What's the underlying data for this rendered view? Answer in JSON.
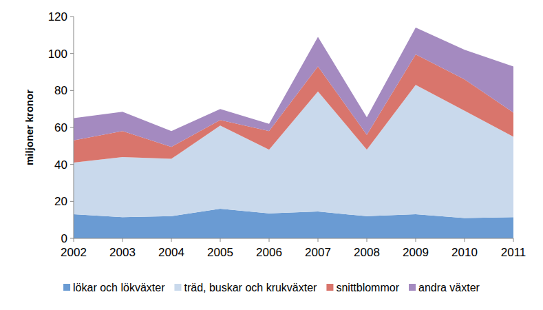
{
  "chart_data": {
    "type": "area",
    "stacked": true,
    "y_label": "miljoner kronor",
    "categories": [
      "2002",
      "2003",
      "2004",
      "2005",
      "2006",
      "2007",
      "2008",
      "2009",
      "2010",
      "2011"
    ],
    "series": [
      {
        "name": "lökar och lökväxter",
        "color": "#6a9bd3",
        "values": [
          13,
          11.5,
          12,
          16,
          13.5,
          14.5,
          12,
          13,
          11,
          11.5
        ]
      },
      {
        "name": "träd, buskar och krukväxter",
        "color": "#c9d9ec",
        "values": [
          28,
          32.5,
          31,
          45,
          34.5,
          65,
          36,
          70,
          58,
          43.5
        ]
      },
      {
        "name": "snittblommor",
        "color": "#d9756c",
        "values": [
          12,
          14,
          6.5,
          3,
          10,
          13.5,
          8,
          16.5,
          17,
          13
        ]
      },
      {
        "name": "andra växter",
        "color": "#a48ac0",
        "values": [
          12,
          10.5,
          8.5,
          6,
          4,
          16,
          9.5,
          14.5,
          16,
          25
        ]
      }
    ],
    "ylim": [
      0,
      120
    ],
    "yticks": [
      0,
      20,
      40,
      60,
      80,
      100,
      120
    ],
    "grid": false,
    "legend": "bottom"
  }
}
